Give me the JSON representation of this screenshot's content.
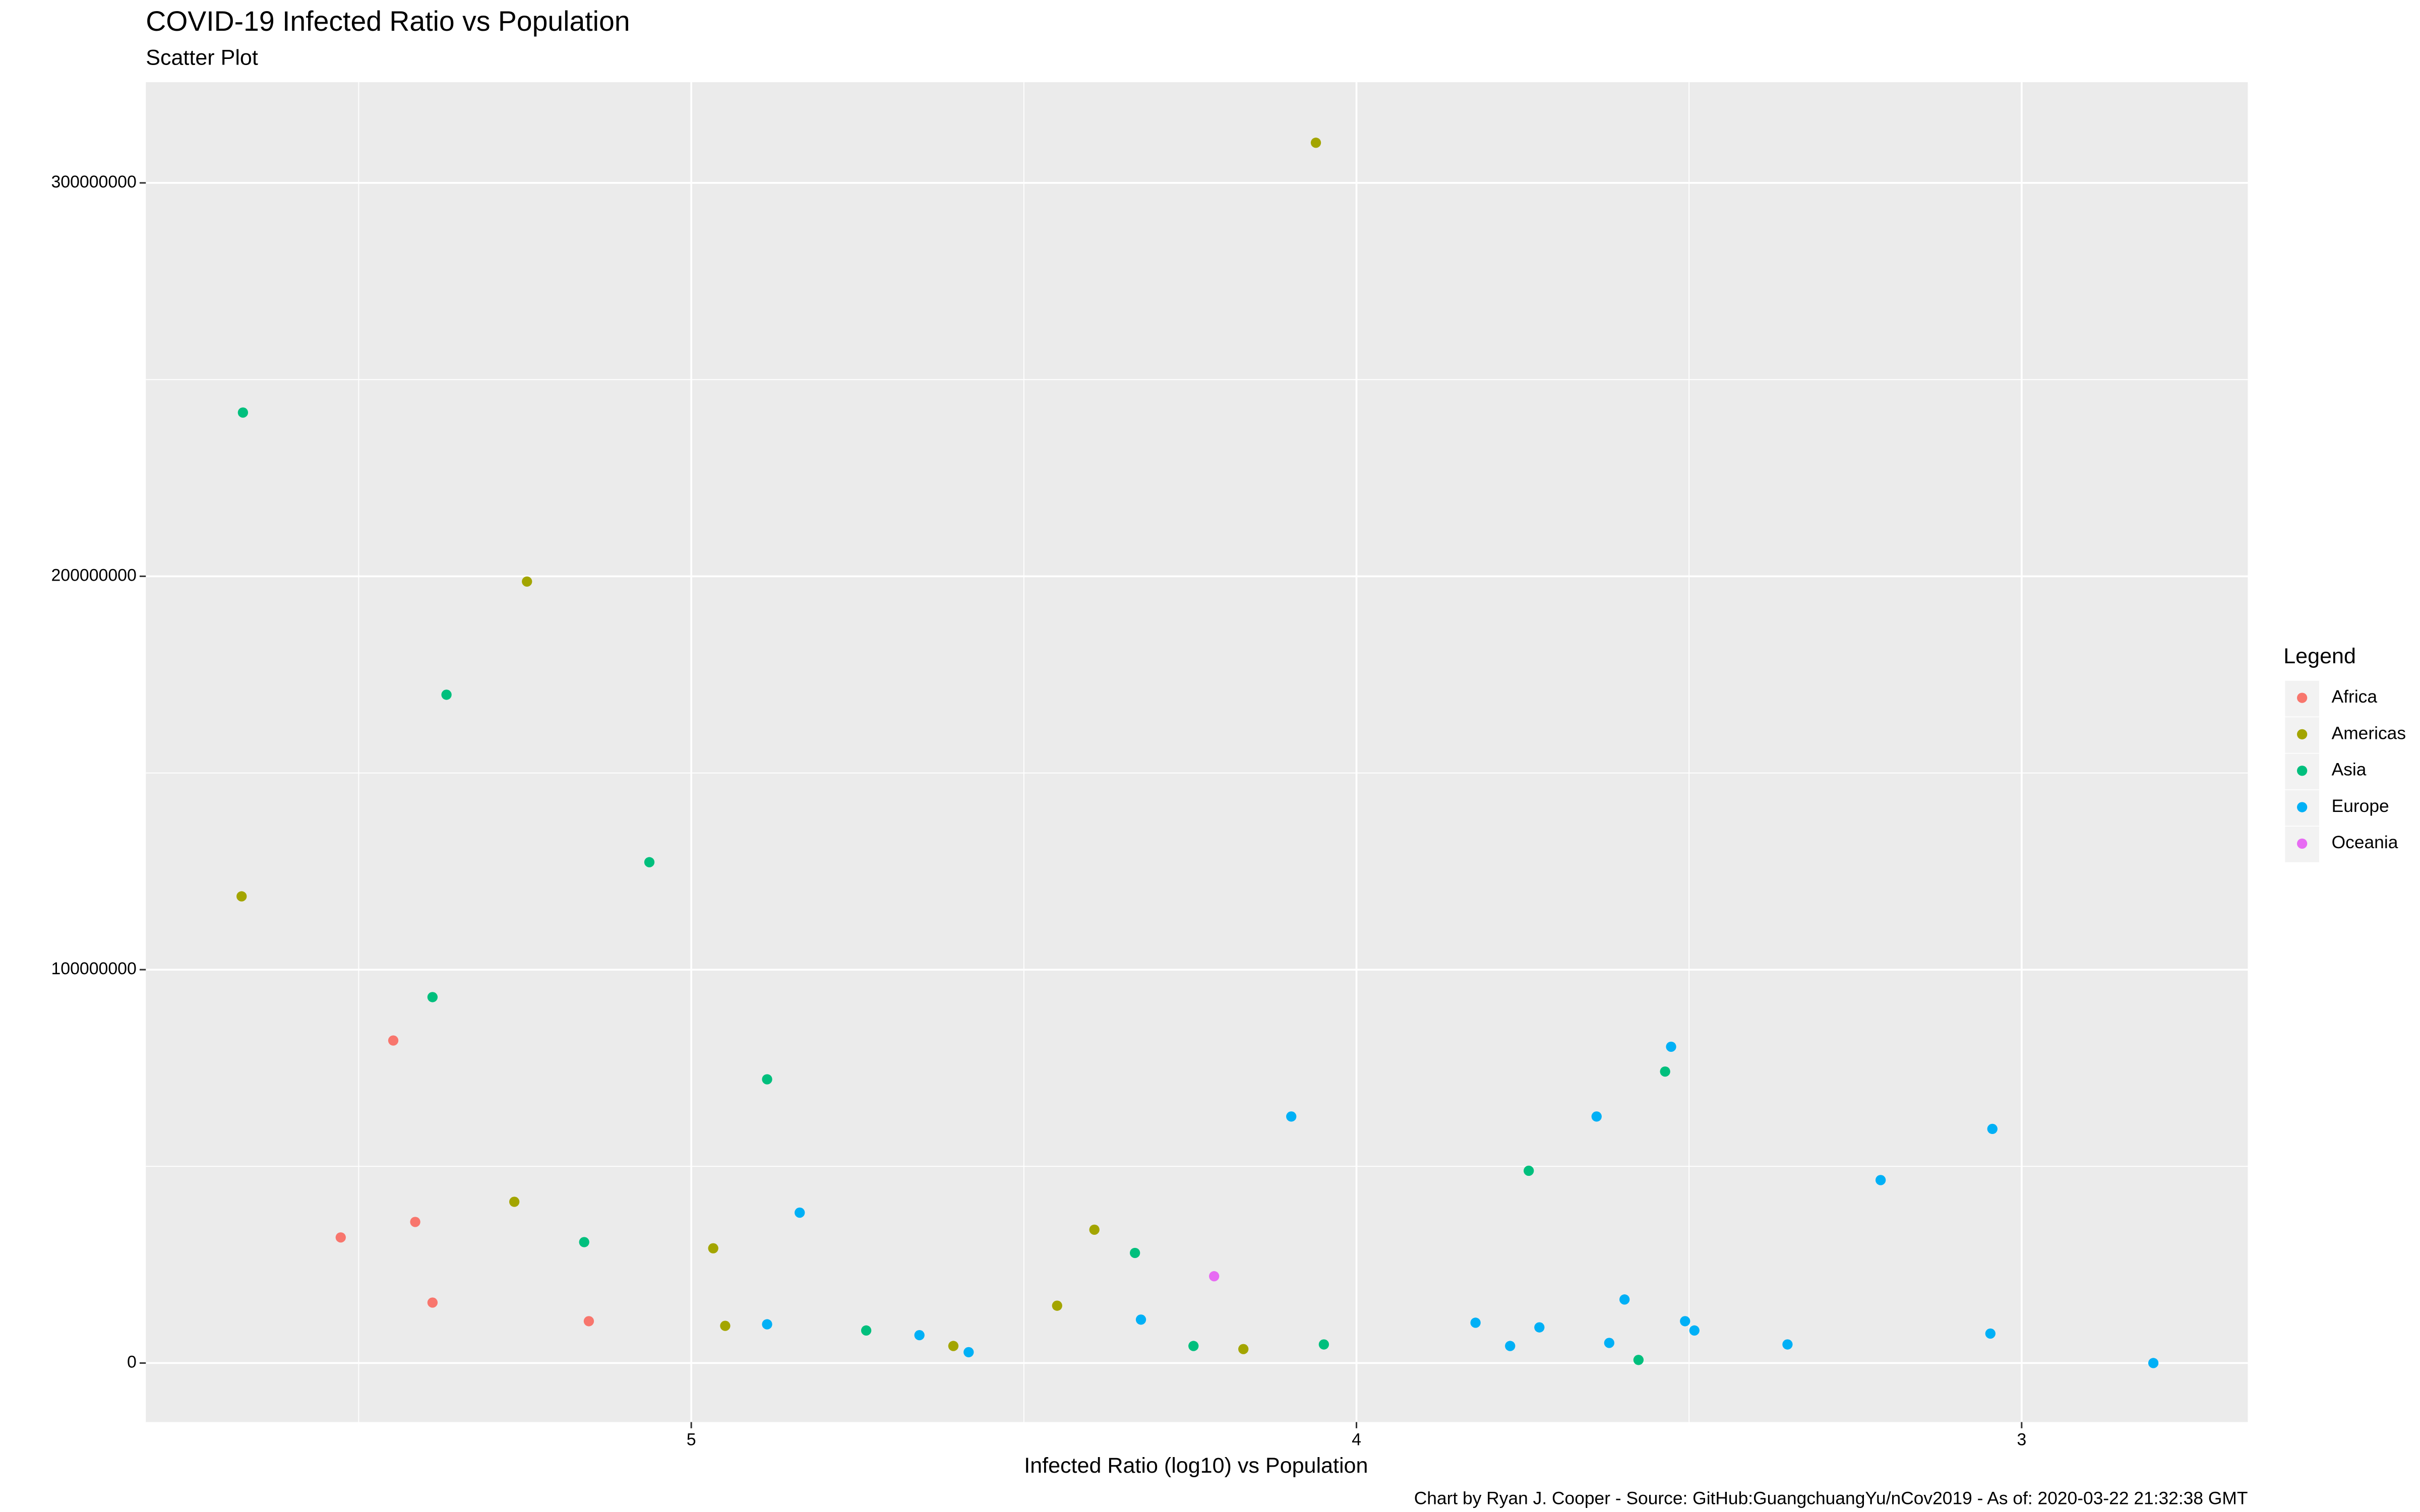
{
  "chart_data": {
    "type": "scatter",
    "title": "COVID-19 Infected Ratio vs Population",
    "subtitle": "Scatter Plot",
    "x_label": "Infected Ratio (log10) vs Population",
    "caption": "Chart by Ryan J. Cooper - Source: GitHub:GuangchuangYu/nCov2019 - As of:  2020-03-22 21:32:38 GMT",
    "legend_title": "Legend",
    "legend_position": "right",
    "grid": true,
    "xlim": [
      5.82,
      2.66
    ],
    "xticks": [
      5,
      4,
      3
    ],
    "ylim": [
      -15000000,
      325600000
    ],
    "yticks": [
      0,
      100000000,
      200000000,
      300000000
    ],
    "series": [
      {
        "name": "Africa",
        "color": "#F8766D",
        "x": [
          5.527,
          5.448,
          5.415,
          5.389,
          5.154
        ],
        "values": [
          31930000,
          81990000,
          35870000,
          15370000,
          10640000
        ]
      },
      {
        "name": "Americas",
        "color": "#A3A500",
        "x": [
          5.676,
          5.247,
          5.266,
          4.967,
          4.949,
          4.606,
          4.45,
          4.394,
          4.17,
          4.061
        ],
        "values": [
          118640000,
          198660000,
          40990000,
          29170000,
          9460000,
          4340000,
          14580000,
          33900000,
          3550000,
          310210000
        ]
      },
      {
        "name": "Asia",
        "color": "#00BF7D",
        "x": [
          5.674,
          5.368,
          5.389,
          5.063,
          5.161,
          4.886,
          4.737,
          4.333,
          4.245,
          4.049,
          3.741,
          3.536,
          3.576
        ],
        "values": [
          241620000,
          169890000,
          93020000,
          127320000,
          30740000,
          72130000,
          8280000,
          27990000,
          4340000,
          4730000,
          48880000,
          74100000,
          790000
        ]
      },
      {
        "name": "Europe",
        "color": "#00B0F6",
        "x": [
          4.837,
          4.886,
          4.657,
          4.583,
          4.324,
          4.098,
          3.821,
          3.769,
          3.725,
          3.639,
          3.62,
          3.597,
          3.527,
          3.506,
          3.492,
          3.352,
          3.212,
          3.044,
          3.047,
          2.802
        ],
        "values": [
          38230000,
          9850000,
          7090000,
          2760000,
          11040000,
          62670000,
          10250000,
          4340000,
          9070000,
          62670000,
          5120000,
          16160000,
          80410000,
          10640000,
          8280000,
          4730000,
          46510000,
          59520000,
          7490000,
          0
        ]
      },
      {
        "name": "Oceania",
        "color": "#E76BF3",
        "x": [
          4.214
        ],
        "values": [
          22070000
        ]
      }
    ]
  }
}
